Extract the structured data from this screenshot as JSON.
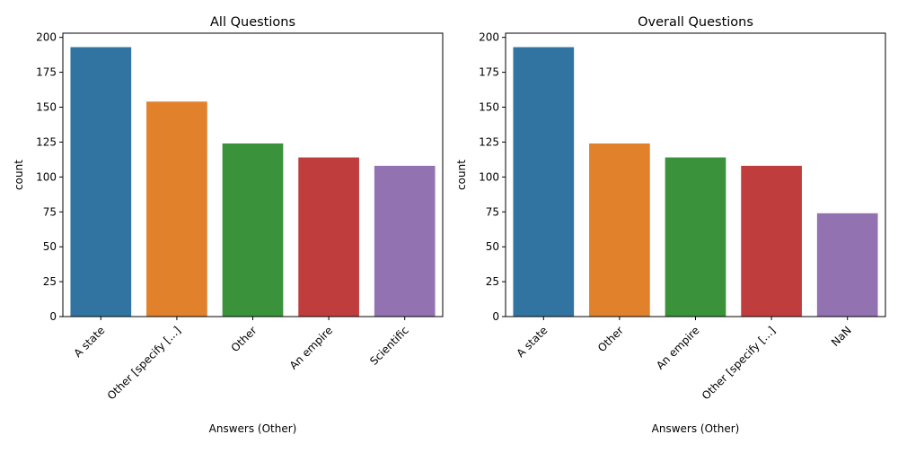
{
  "chart_data": [
    {
      "type": "bar",
      "title": "All Questions",
      "xlabel": "Answers (Other)",
      "ylabel": "count",
      "categories": [
        "A state",
        "Other [specify  [...]",
        "Other",
        "An empire",
        "Scientific"
      ],
      "values": [
        193,
        154,
        124,
        114,
        108
      ],
      "colors": [
        "#3274a1",
        "#e1812c",
        "#3a923a",
        "#c03d3e",
        "#9372b2"
      ],
      "ylim": [
        0,
        203
      ],
      "yticks": [
        0,
        25,
        50,
        75,
        100,
        125,
        150,
        175,
        200
      ],
      "grid": false,
      "legend": "none"
    },
    {
      "type": "bar",
      "title": "Overall Questions",
      "xlabel": "Answers (Other)",
      "ylabel": "count",
      "categories": [
        "A state",
        "Other",
        "An empire",
        "Other [specify  [...]",
        "NaN"
      ],
      "values": [
        193,
        124,
        114,
        108,
        74
      ],
      "colors": [
        "#3274a1",
        "#e1812c",
        "#3a923a",
        "#c03d3e",
        "#9372b2"
      ],
      "ylim": [
        0,
        203
      ],
      "yticks": [
        0,
        25,
        50,
        75,
        100,
        125,
        150,
        175,
        200
      ],
      "grid": false,
      "legend": "none"
    }
  ]
}
